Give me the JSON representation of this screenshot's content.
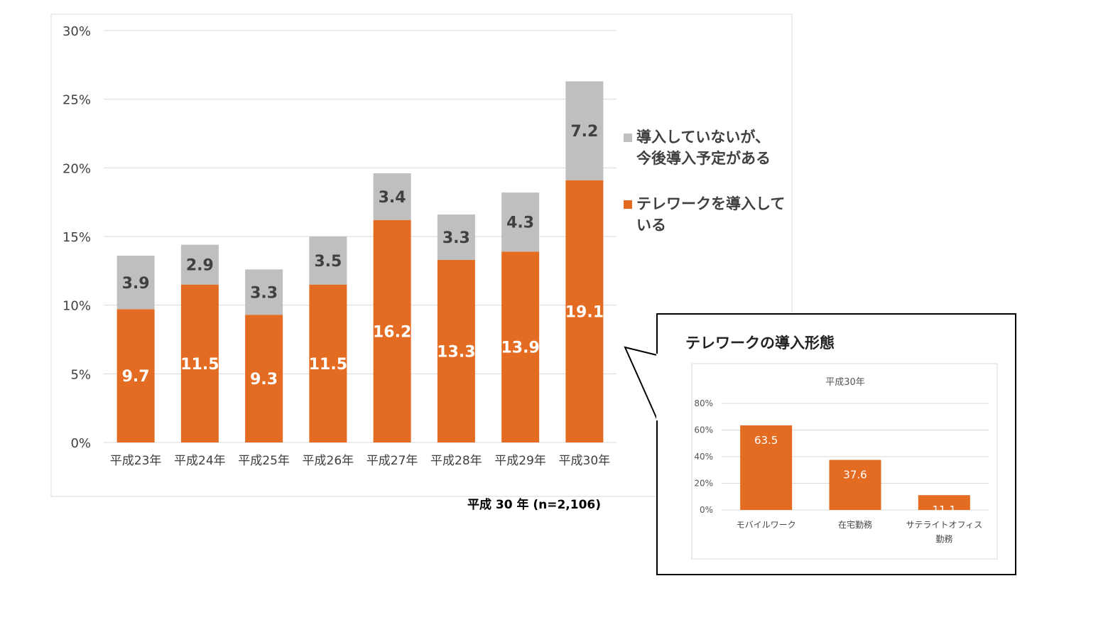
{
  "chart_data": [
    {
      "type": "bar",
      "stacked": true,
      "categories": [
        "平成23年",
        "平成24年",
        "平成25年",
        "平成26年",
        "平成27年",
        "平成28年",
        "平成29年",
        "平成30年"
      ],
      "series": [
        {
          "name": "テレワークを導入している",
          "values": [
            9.7,
            11.5,
            9.3,
            11.5,
            16.2,
            13.3,
            13.9,
            19.1
          ],
          "color": "#E36C22"
        },
        {
          "name": "導入していないが、今後導入予定がある",
          "values": [
            3.9,
            2.9,
            3.3,
            3.5,
            3.4,
            3.3,
            4.3,
            7.2
          ],
          "color": "#BFBFBF"
        }
      ],
      "y_ticks": [
        "0%",
        "5%",
        "10%",
        "15%",
        "20%",
        "25%",
        "30%"
      ],
      "ylim": [
        0,
        30
      ],
      "grid": true,
      "legend_placement": "right",
      "legend": [
        {
          "lines": [
            "導入していないが、",
            "今後導入予定がある"
          ],
          "color": "#BFBFBF"
        },
        {
          "lines": [
            "テレワークを導入して",
            "いる"
          ],
          "color": "#E36C22"
        }
      ],
      "note": "平成 30 年 (n=2,106)"
    },
    {
      "type": "bar",
      "title": "テレワークの導入形態",
      "subtitle": "平成30年",
      "categories": [
        [
          "モバイルワーク"
        ],
        [
          "在宅勤務"
        ],
        [
          "サテライトオフィス",
          "勤務"
        ]
      ],
      "values": [
        63.5,
        37.6,
        11.1
      ],
      "color": "#E36C22",
      "y_ticks": [
        "0%",
        "20%",
        "40%",
        "60%",
        "80%"
      ],
      "ylim": [
        0,
        80
      ],
      "grid": true
    }
  ]
}
